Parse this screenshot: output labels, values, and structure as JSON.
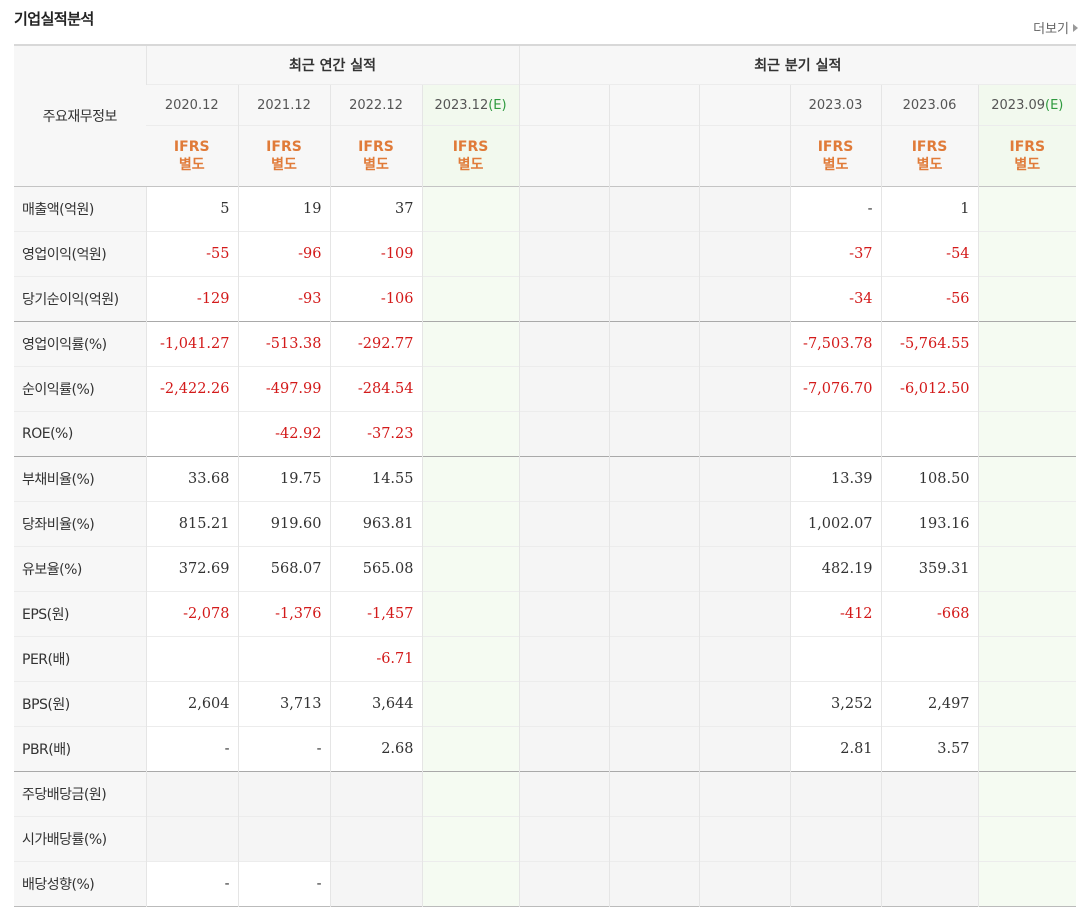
{
  "header": {
    "title": "기업실적분석",
    "more_label": "더보기"
  },
  "table": {
    "corner": "주요재무정보",
    "annual_title": "최근 연간 실적",
    "quarter_title": "최근 분기 실적",
    "annual_periods": [
      "2020.12",
      "2021.12",
      "2022.12",
      "2023.12"
    ],
    "quarter_periods": [
      "",
      "",
      "",
      "2023.03",
      "2023.06",
      "2023.09"
    ],
    "estimate_mark": "(E)",
    "ifrs_line1": "IFRS",
    "ifrs_line2": "별도",
    "rows": [
      {
        "label": "매출액(억원)",
        "values": [
          "5",
          "19",
          "37",
          "",
          "",
          "",
          "",
          "-",
          "1",
          ""
        ]
      },
      {
        "label": "영업이익(억원)",
        "values": [
          "-55",
          "-96",
          "-109",
          "",
          "",
          "",
          "",
          "-37",
          "-54",
          ""
        ]
      },
      {
        "label": "당기순이익(억원)",
        "values": [
          "-129",
          "-93",
          "-106",
          "",
          "",
          "",
          "",
          "-34",
          "-56",
          ""
        ]
      },
      {
        "label": "영업이익률(%)",
        "values": [
          "-1,041.27",
          "-513.38",
          "-292.77",
          "",
          "",
          "",
          "",
          "-7,503.78",
          "-5,764.55",
          ""
        ]
      },
      {
        "label": "순이익률(%)",
        "values": [
          "-2,422.26",
          "-497.99",
          "-284.54",
          "",
          "",
          "",
          "",
          "-7,076.70",
          "-6,012.50",
          ""
        ]
      },
      {
        "label": "ROE(%)",
        "values": [
          "",
          "-42.92",
          "-37.23",
          "",
          "",
          "",
          "",
          "",
          "",
          ""
        ]
      },
      {
        "label": "부채비율(%)",
        "values": [
          "33.68",
          "19.75",
          "14.55",
          "",
          "",
          "",
          "",
          "13.39",
          "108.50",
          ""
        ]
      },
      {
        "label": "당좌비율(%)",
        "values": [
          "815.21",
          "919.60",
          "963.81",
          "",
          "",
          "",
          "",
          "1,002.07",
          "193.16",
          ""
        ]
      },
      {
        "label": "유보율(%)",
        "values": [
          "372.69",
          "568.07",
          "565.08",
          "",
          "",
          "",
          "",
          "482.19",
          "359.31",
          ""
        ]
      },
      {
        "label": "EPS(원)",
        "values": [
          "-2,078",
          "-1,376",
          "-1,457",
          "",
          "",
          "",
          "",
          "-412",
          "-668",
          ""
        ]
      },
      {
        "label": "PER(배)",
        "values": [
          "",
          "",
          "-6.71",
          "",
          "",
          "",
          "",
          "",
          "",
          ""
        ]
      },
      {
        "label": "BPS(원)",
        "values": [
          "2,604",
          "3,713",
          "3,644",
          "",
          "",
          "",
          "",
          "3,252",
          "2,497",
          ""
        ]
      },
      {
        "label": "PBR(배)",
        "values": [
          "-",
          "-",
          "2.68",
          "",
          "",
          "",
          "",
          "2.81",
          "3.57",
          ""
        ]
      },
      {
        "label": "주당배당금(원)",
        "values": [
          "",
          "",
          "",
          "",
          "",
          "",
          "",
          "",
          "",
          ""
        ]
      },
      {
        "label": "시가배당률(%)",
        "values": [
          "",
          "",
          "",
          "",
          "",
          "",
          "",
          "",
          "",
          ""
        ]
      },
      {
        "label": "배당성향(%)",
        "values": [
          "-",
          "-",
          "",
          "",
          "",
          "",
          "",
          "",
          "",
          ""
        ]
      }
    ]
  }
}
